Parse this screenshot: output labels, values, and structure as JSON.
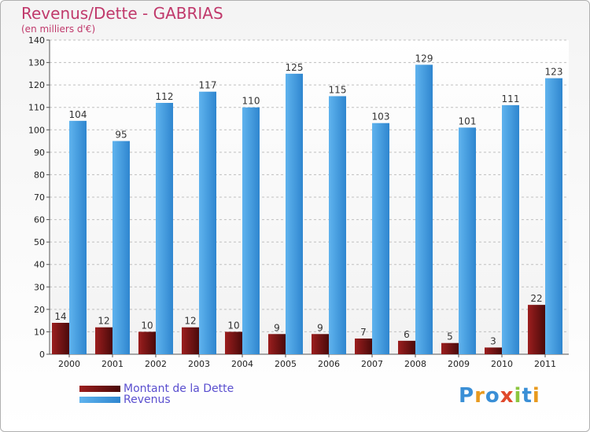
{
  "chart_data": {
    "type": "bar",
    "title": "Revenus/Dette - GABRIAS",
    "subtitle": "(en milliers d'€)",
    "categories": [
      "2000",
      "2001",
      "2002",
      "2003",
      "2004",
      "2005",
      "2006",
      "2007",
      "2008",
      "2009",
      "2010",
      "2011"
    ],
    "series": [
      {
        "name": "Montant de la Dette",
        "color": "#8b1a1a",
        "values": [
          14,
          12,
          10,
          12,
          10,
          9,
          9,
          7,
          6,
          5,
          3,
          22
        ]
      },
      {
        "name": "Revenus",
        "color": "#3d9be0",
        "values": [
          104,
          95,
          112,
          117,
          110,
          125,
          115,
          103,
          129,
          101,
          111,
          123
        ]
      }
    ],
    "ylim": [
      0,
      140
    ],
    "yticks": [
      0,
      10,
      20,
      30,
      40,
      50,
      60,
      70,
      80,
      90,
      100,
      110,
      120,
      130,
      140
    ],
    "grid": true,
    "legend_position": "bottom-left"
  },
  "logo": {
    "text": "Proxiti",
    "letters": [
      {
        "ch": "P",
        "color": "#3a8fd6"
      },
      {
        "ch": "r",
        "color": "#e89a1f"
      },
      {
        "ch": "o",
        "color": "#3a8fd6"
      },
      {
        "ch": "x",
        "color": "#e0492b"
      },
      {
        "ch": "i",
        "color": "#8cc63f"
      },
      {
        "ch": "t",
        "color": "#3a8fd6"
      },
      {
        "ch": "i",
        "color": "#e89a1f"
      }
    ]
  }
}
